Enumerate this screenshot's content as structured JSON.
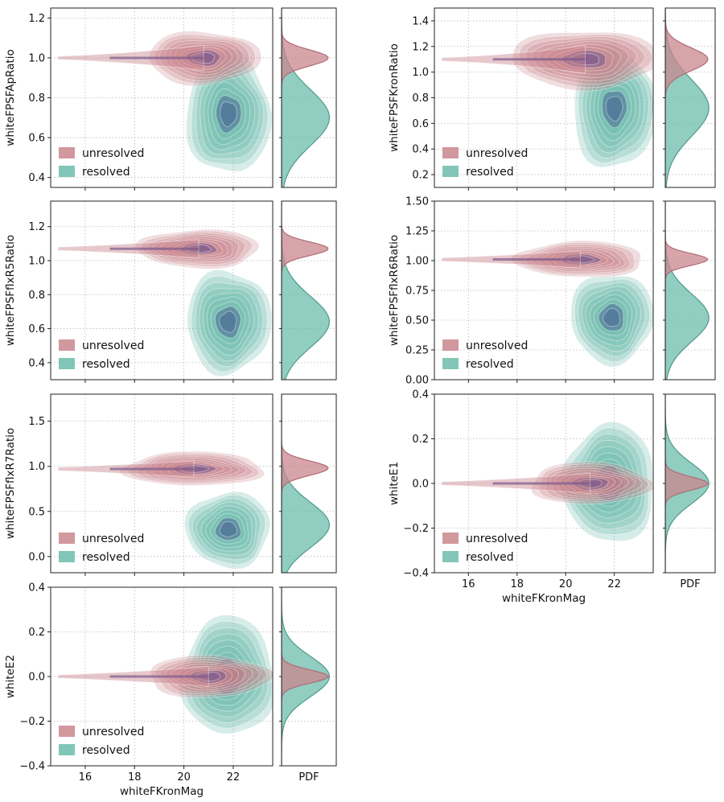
{
  "figure": {
    "legend_unresolved": "unresolved",
    "legend_resolved": "resolved",
    "pdf_label": "PDF"
  },
  "colors": {
    "unresolved": "#c9868d",
    "resolved": "#6cbcab",
    "unresolved_core": "#7a5a8c",
    "resolved_core": "#4d6b96"
  },
  "chart_data": [
    {
      "type": "density-contour",
      "name": "apratio",
      "ylabel": "whiteFPSFApRatio",
      "xlabel": "",
      "xlim": [
        14.6,
        23.6
      ],
      "ylim": [
        0.35,
        1.25
      ],
      "xticks": [
        16,
        18,
        20,
        22
      ],
      "yticks": [
        0.4,
        0.6,
        0.8,
        1.0,
        1.2
      ],
      "yticklabels": [
        "0.4",
        "0.6",
        "0.8",
        "1.0",
        "1.2"
      ],
      "series": [
        {
          "name": "resolved",
          "center": [
            21.8,
            0.72
          ],
          "spread": [
            0.9,
            0.16
          ],
          "pdf_peak": 0.7,
          "pdf_width": 0.14
        },
        {
          "name": "unresolved",
          "center": [
            20.8,
            1.0
          ],
          "spread": [
            1.2,
            0.07
          ],
          "pdf_peak": 1.0,
          "pdf_width": 0.04
        }
      ]
    },
    {
      "type": "density-contour",
      "name": "kronratio",
      "ylabel": "whiteFPSFKronRatio",
      "xlabel": "",
      "xlim": [
        14.6,
        23.6
      ],
      "ylim": [
        0.1,
        1.5
      ],
      "xticks": [
        16,
        18,
        20,
        22
      ],
      "yticks": [
        0.2,
        0.4,
        0.6,
        0.8,
        1.0,
        1.2,
        1.4
      ],
      "yticklabels": [
        "0.2",
        "0.4",
        "0.6",
        "0.8",
        "1.0",
        "1.2",
        "1.4"
      ],
      "series": [
        {
          "name": "resolved",
          "center": [
            22.0,
            0.72
          ],
          "spread": [
            0.9,
            0.25
          ],
          "pdf_peak": 0.72,
          "pdf_width": 0.22
        },
        {
          "name": "unresolved",
          "center": [
            20.8,
            1.1
          ],
          "spread": [
            1.6,
            0.12
          ],
          "pdf_peak": 1.1,
          "pdf_width": 0.09
        }
      ]
    },
    {
      "type": "density-contour",
      "name": "flxr5",
      "ylabel": "whiteFPSFflxR5Ratio",
      "xlabel": "",
      "xlim": [
        14.6,
        23.6
      ],
      "ylim": [
        0.3,
        1.35
      ],
      "xticks": [
        16,
        18,
        20,
        22
      ],
      "yticks": [
        0.4,
        0.6,
        0.8,
        1.0,
        1.2
      ],
      "yticklabels": [
        "0.4",
        "0.6",
        "0.8",
        "1.0",
        "1.2"
      ],
      "series": [
        {
          "name": "resolved",
          "center": [
            21.8,
            0.64
          ],
          "spread": [
            0.9,
            0.16
          ],
          "pdf_peak": 0.64,
          "pdf_width": 0.15
        },
        {
          "name": "unresolved",
          "center": [
            20.6,
            1.07
          ],
          "spread": [
            1.3,
            0.06
          ],
          "pdf_peak": 1.07,
          "pdf_width": 0.04
        }
      ]
    },
    {
      "type": "density-contour",
      "name": "flxr6",
      "ylabel": "whiteFPSFflxR6Ratio",
      "xlabel": "",
      "xlim": [
        14.6,
        23.6
      ],
      "ylim": [
        0.0,
        1.5
      ],
      "xticks": [
        16,
        18,
        20,
        22
      ],
      "yticks": [
        0.0,
        0.25,
        0.5,
        0.75,
        1.0,
        1.25,
        1.5
      ],
      "yticklabels": [
        "0.00",
        "0.25",
        "0.50",
        "0.75",
        "1.00",
        "1.25",
        "1.50"
      ],
      "series": [
        {
          "name": "resolved",
          "center": [
            21.9,
            0.52
          ],
          "spread": [
            0.9,
            0.2
          ],
          "pdf_peak": 0.52,
          "pdf_width": 0.2
        },
        {
          "name": "unresolved",
          "center": [
            20.6,
            1.01
          ],
          "spread": [
            1.4,
            0.08
          ],
          "pdf_peak": 1.01,
          "pdf_width": 0.05
        }
      ]
    },
    {
      "type": "density-contour",
      "name": "flxr7",
      "ylabel": "whiteFPSFflxR7Ratio",
      "xlabel": "",
      "xlim": [
        14.6,
        23.6
      ],
      "ylim": [
        -0.18,
        1.8
      ],
      "xticks": [
        16,
        18,
        20,
        22
      ],
      "yticks": [
        0.0,
        0.5,
        1.0,
        1.5
      ],
      "yticklabels": [
        "0.0",
        "0.5",
        "1.0",
        "1.5"
      ],
      "series": [
        {
          "name": "resolved",
          "center": [
            21.8,
            0.3
          ],
          "spread": [
            0.9,
            0.22
          ],
          "pdf_peak": 0.35,
          "pdf_width": 0.25
        },
        {
          "name": "unresolved",
          "center": [
            20.4,
            0.97
          ],
          "spread": [
            1.5,
            0.1
          ],
          "pdf_peak": 0.98,
          "pdf_width": 0.08
        }
      ]
    },
    {
      "type": "density-contour",
      "name": "e1",
      "ylabel": "whiteE1",
      "xlabel": "whiteFKronMag",
      "xlim": [
        14.6,
        23.6
      ],
      "ylim": [
        -0.4,
        0.4
      ],
      "xticks": [
        16,
        18,
        20,
        22
      ],
      "yticks": [
        -0.4,
        -0.2,
        0.0,
        0.2,
        0.4
      ],
      "yticklabels": [
        "−0.4",
        "−0.2",
        "0.0",
        "0.2",
        "0.4"
      ],
      "series": [
        {
          "name": "resolved",
          "center": [
            21.8,
            0.0
          ],
          "spread": [
            1.0,
            0.14
          ],
          "pdf_peak": 0.0,
          "pdf_width": 0.09
        },
        {
          "name": "unresolved",
          "center": [
            21.0,
            0.0
          ],
          "spread": [
            1.3,
            0.05
          ],
          "pdf_peak": 0.0,
          "pdf_width": 0.03
        }
      ]
    },
    {
      "type": "density-contour",
      "name": "e2",
      "ylabel": "whiteE2",
      "xlabel": "whiteFKronMag",
      "xlim": [
        14.6,
        23.6
      ],
      "ylim": [
        -0.4,
        0.4
      ],
      "xticks": [
        16,
        18,
        20,
        22
      ],
      "yticks": [
        -0.4,
        -0.2,
        0.0,
        0.2,
        0.4
      ],
      "yticklabels": [
        "−0.4",
        "−0.2",
        "0.0",
        "0.2",
        "0.4"
      ],
      "series": [
        {
          "name": "resolved",
          "center": [
            21.8,
            0.0
          ],
          "spread": [
            1.0,
            0.14
          ],
          "pdf_peak": 0.0,
          "pdf_width": 0.09
        },
        {
          "name": "unresolved",
          "center": [
            21.0,
            0.0
          ],
          "spread": [
            1.3,
            0.05
          ],
          "pdf_peak": 0.0,
          "pdf_width": 0.03
        }
      ]
    }
  ]
}
